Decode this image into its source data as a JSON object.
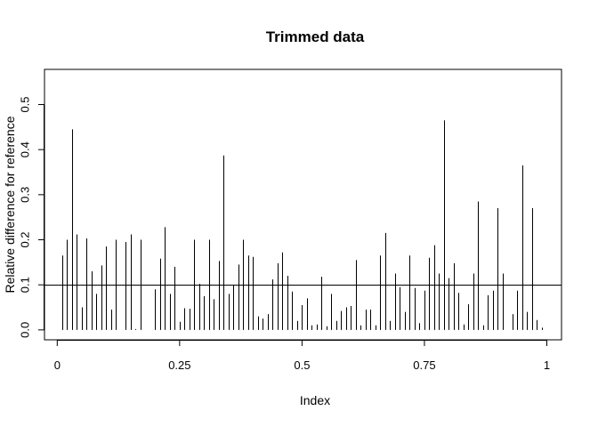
{
  "chart_data": {
    "type": "bar",
    "title": "Trimmed data",
    "xlabel": "Index",
    "ylabel": "Relative difference for reference",
    "xlim": [
      -0.026,
      1.03
    ],
    "ylim": [
      -0.022,
      0.578
    ],
    "x_ticks": [
      0,
      0.25,
      0.5,
      0.75,
      1
    ],
    "x_tick_labels": [
      "0",
      "0.25",
      "0.5",
      "0.75",
      "1"
    ],
    "y_ticks": [
      0.0,
      0.1,
      0.2,
      0.3,
      0.4,
      0.5
    ],
    "y_tick_labels": [
      "0.0",
      "0.1",
      "0.2",
      "0.3",
      "0.4",
      "0.5"
    ],
    "reference_line": 0.1,
    "grid": false,
    "x": [
      0.01,
      0.02,
      0.03,
      0.04,
      0.05,
      0.06,
      0.07,
      0.08,
      0.09,
      0.1,
      0.11,
      0.12,
      0.13,
      0.14,
      0.15,
      0.16,
      0.17,
      0.18,
      0.19,
      0.2,
      0.21,
      0.22,
      0.23,
      0.24,
      0.25,
      0.26,
      0.27,
      0.28,
      0.29,
      0.3,
      0.31,
      0.32,
      0.33,
      0.34,
      0.35,
      0.36,
      0.37,
      0.38,
      0.39,
      0.4,
      0.41,
      0.42,
      0.43,
      0.44,
      0.45,
      0.46,
      0.47,
      0.48,
      0.49,
      0.5,
      0.51,
      0.52,
      0.53,
      0.54,
      0.55,
      0.56,
      0.57,
      0.58,
      0.59,
      0.6,
      0.61,
      0.62,
      0.63,
      0.64,
      0.65,
      0.66,
      0.67,
      0.68,
      0.69,
      0.7,
      0.71,
      0.72,
      0.73,
      0.74,
      0.75,
      0.76,
      0.77,
      0.78,
      0.79,
      0.8,
      0.81,
      0.82,
      0.83,
      0.84,
      0.85,
      0.86,
      0.87,
      0.88,
      0.89,
      0.9,
      0.91,
      0.92,
      0.93,
      0.94,
      0.95,
      0.96,
      0.97,
      0.98,
      0.99
    ],
    "values": [
      0.165,
      0.2,
      0.445,
      0.212,
      0.05,
      0.203,
      0.13,
      0.08,
      0.143,
      0.185,
      0.045,
      0.2,
      0.0,
      0.195,
      0.212,
      0.002,
      0.2,
      0.0,
      0.0,
      0.09,
      0.158,
      0.228,
      0.08,
      0.14,
      0.018,
      0.048,
      0.047,
      0.2,
      0.102,
      0.075,
      0.2,
      0.068,
      0.153,
      0.387,
      0.08,
      0.1,
      0.145,
      0.2,
      0.165,
      0.162,
      0.03,
      0.025,
      0.035,
      0.112,
      0.148,
      0.172,
      0.12,
      0.085,
      0.02,
      0.055,
      0.07,
      0.01,
      0.012,
      0.118,
      0.008,
      0.08,
      0.02,
      0.042,
      0.05,
      0.053,
      0.155,
      0.01,
      0.045,
      0.045,
      0.01,
      0.165,
      0.215,
      0.02,
      0.125,
      0.095,
      0.04,
      0.165,
      0.093,
      0.015,
      0.087,
      0.16,
      0.188,
      0.125,
      0.465,
      0.115,
      0.148,
      0.082,
      0.012,
      0.057,
      0.125,
      0.285,
      0.01,
      0.077,
      0.087,
      0.27,
      0.125,
      0.0,
      0.035,
      0.087,
      0.365,
      0.04,
      0.27,
      0.022,
      0.005
    ]
  }
}
